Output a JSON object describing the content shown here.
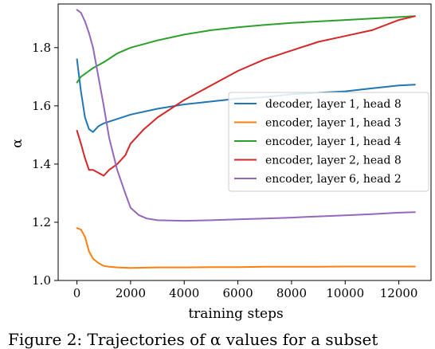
{
  "caption": "Figure 2:  Trajectories of α values for a subset",
  "chart_data": {
    "type": "line",
    "title": "",
    "xlabel": "training steps",
    "ylabel": "α",
    "xlim": [
      -700,
      13200
    ],
    "ylim": [
      1.0,
      1.95
    ],
    "xticks": [
      0,
      2000,
      4000,
      6000,
      8000,
      10000,
      12000
    ],
    "yticks": [
      1.0,
      1.2,
      1.4,
      1.6,
      1.8
    ],
    "grid": false,
    "legend": "right",
    "series": [
      {
        "name": "decoder, layer 1, head 8",
        "color": "#1f77b4",
        "x": [
          0,
          150,
          300,
          450,
          600,
          800,
          1000,
          1500,
          2000,
          3000,
          4000,
          5000,
          6000,
          7000,
          8000,
          9000,
          10000,
          11000,
          12000,
          12600
        ],
        "y": [
          1.76,
          1.65,
          1.56,
          1.52,
          1.51,
          1.53,
          1.54,
          1.555,
          1.57,
          1.59,
          1.605,
          1.615,
          1.625,
          1.63,
          1.64,
          1.645,
          1.65,
          1.66,
          1.67,
          1.673
        ]
      },
      {
        "name": "encoder, layer 1, head 3",
        "color": "#ff7f0e",
        "x": [
          0,
          150,
          300,
          450,
          600,
          800,
          1000,
          1200,
          1500,
          2000,
          3000,
          4000,
          5000,
          6000,
          7000,
          8000,
          9000,
          10000,
          11000,
          12000,
          12600
        ],
        "y": [
          1.18,
          1.175,
          1.15,
          1.1,
          1.075,
          1.06,
          1.05,
          1.047,
          1.045,
          1.043,
          1.045,
          1.045,
          1.046,
          1.046,
          1.047,
          1.047,
          1.047,
          1.048,
          1.048,
          1.048,
          1.048
        ]
      },
      {
        "name": "encoder, layer 1, head 4",
        "color": "#2ca02c",
        "x": [
          0,
          150,
          300,
          450,
          600,
          800,
          1000,
          1500,
          2000,
          3000,
          4000,
          5000,
          6000,
          7000,
          8000,
          9000,
          10000,
          11000,
          12000,
          12600
        ],
        "y": [
          1.68,
          1.7,
          1.71,
          1.72,
          1.73,
          1.74,
          1.75,
          1.78,
          1.8,
          1.825,
          1.845,
          1.86,
          1.87,
          1.878,
          1.885,
          1.89,
          1.895,
          1.9,
          1.905,
          1.908
        ]
      },
      {
        "name": "encoder, layer 2, head 8",
        "color": "#d62728",
        "x": [
          0,
          150,
          300,
          450,
          600,
          800,
          1000,
          1200,
          1500,
          1800,
          2000,
          2500,
          3000,
          3500,
          4000,
          5000,
          6000,
          7000,
          8000,
          9000,
          10000,
          11000,
          12000,
          12600
        ],
        "y": [
          1.515,
          1.47,
          1.42,
          1.38,
          1.38,
          1.37,
          1.36,
          1.38,
          1.4,
          1.43,
          1.47,
          1.52,
          1.56,
          1.59,
          1.62,
          1.67,
          1.72,
          1.76,
          1.79,
          1.82,
          1.84,
          1.86,
          1.895,
          1.908
        ]
      },
      {
        "name": "encoder, layer 6, head 2",
        "color": "#9467bd",
        "x": [
          0,
          150,
          300,
          450,
          600,
          800,
          1000,
          1200,
          1500,
          1800,
          2000,
          2300,
          2600,
          3000,
          4000,
          5000,
          6000,
          7000,
          8000,
          9000,
          10000,
          11000,
          12000,
          12600
        ],
        "y": [
          1.93,
          1.92,
          1.89,
          1.85,
          1.8,
          1.7,
          1.6,
          1.49,
          1.38,
          1.3,
          1.25,
          1.225,
          1.213,
          1.207,
          1.205,
          1.207,
          1.21,
          1.213,
          1.216,
          1.22,
          1.224,
          1.228,
          1.233,
          1.235
        ]
      }
    ]
  }
}
